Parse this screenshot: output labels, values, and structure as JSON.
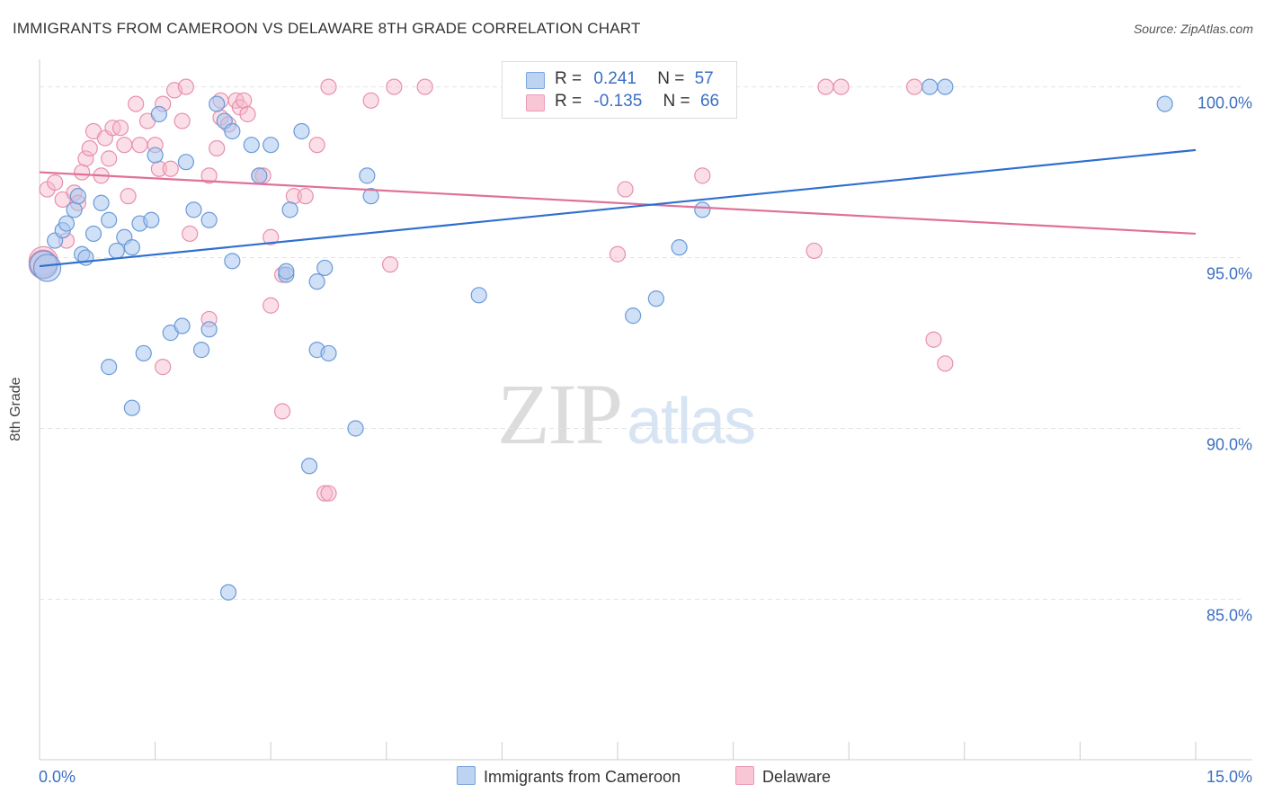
{
  "title": "IMMIGRANTS FROM CAMEROON VS DELAWARE 8TH GRADE CORRELATION CHART",
  "source": "Source: ZipAtlas.com",
  "watermark": {
    "zip": "ZIP",
    "atlas": "atlas"
  },
  "legend": {
    "row1": {
      "r_label": "R =",
      "r_value": "0.241",
      "n_label": "N =",
      "n_value": "57"
    },
    "row2": {
      "r_label": "R =",
      "r_value": "-0.135",
      "n_label": "N =",
      "n_value": "66"
    }
  },
  "bottom_legend": {
    "series1": "Immigrants from Cameroon",
    "series2": "Delaware"
  },
  "colors": {
    "blue_fill": "#a9c7ee",
    "blue_stroke": "#6a9bd8",
    "blue_line": "#2f6fcf",
    "pink_fill": "#f7b8cb",
    "pink_stroke": "#e890ab",
    "pink_line": "#e07099",
    "tick_label": "#3b6fc4",
    "grid": "#e4e4e4"
  },
  "chart_data": {
    "type": "scatter",
    "title": "IMMIGRANTS FROM CAMEROON VS DELAWARE 8TH GRADE CORRELATION CHART",
    "xlabel": "",
    "ylabel": "8th Grade",
    "xlim": [
      0,
      15
    ],
    "ylim": [
      80.3,
      100.7
    ],
    "x_tick_labels": [
      {
        "value": 0,
        "label": "0.0%"
      },
      {
        "value": 15,
        "label": "15.0%"
      }
    ],
    "y_tick_labels": [
      {
        "value": 100,
        "label": "100.0%"
      },
      {
        "value": 95,
        "label": "95.0%"
      },
      {
        "value": 90,
        "label": "90.0%"
      },
      {
        "value": 85,
        "label": "85.0%"
      }
    ],
    "x_minor_ticks": [
      1.5,
      3,
      4.5,
      6,
      7.5,
      9,
      10.5,
      12,
      13.5,
      15
    ],
    "grid": true,
    "legend_position": "top-center",
    "series": [
      {
        "name": "Immigrants from Cameroon",
        "color": "#a9c7ee",
        "r": 0.241,
        "n": 57,
        "trend": {
          "x": [
            0,
            15
          ],
          "y": [
            94.75,
            98.15
          ]
        },
        "points": [
          [
            0.05,
            94.8
          ],
          [
            0.1,
            94.7
          ],
          [
            0.2,
            95.5
          ],
          [
            0.3,
            95.8
          ],
          [
            0.35,
            96.0
          ],
          [
            0.45,
            96.4
          ],
          [
            0.5,
            96.8
          ],
          [
            0.55,
            95.1
          ],
          [
            0.6,
            95.0
          ],
          [
            0.7,
            95.7
          ],
          [
            0.8,
            96.6
          ],
          [
            0.9,
            96.1
          ],
          [
            1.0,
            95.2
          ],
          [
            1.1,
            95.6
          ],
          [
            1.2,
            95.3
          ],
          [
            1.3,
            96.0
          ],
          [
            1.45,
            96.1
          ],
          [
            1.5,
            98.0
          ],
          [
            1.55,
            99.2
          ],
          [
            1.9,
            97.8
          ],
          [
            2.0,
            96.4
          ],
          [
            2.2,
            96.1
          ],
          [
            2.3,
            99.5
          ],
          [
            2.4,
            99.0
          ],
          [
            2.5,
            98.7
          ],
          [
            2.5,
            94.9
          ],
          [
            2.75,
            98.3
          ],
          [
            2.85,
            97.4
          ],
          [
            3.0,
            98.3
          ],
          [
            3.2,
            94.5
          ],
          [
            3.25,
            96.4
          ],
          [
            3.4,
            98.7
          ],
          [
            3.6,
            94.3
          ],
          [
            3.7,
            94.7
          ],
          [
            4.25,
            97.4
          ],
          [
            4.3,
            96.8
          ],
          [
            0.9,
            91.8
          ],
          [
            1.2,
            90.6
          ],
          [
            1.35,
            92.2
          ],
          [
            1.7,
            92.8
          ],
          [
            1.85,
            93.0
          ],
          [
            2.1,
            92.3
          ],
          [
            2.2,
            92.9
          ],
          [
            3.6,
            92.3
          ],
          [
            3.75,
            92.2
          ],
          [
            3.5,
            88.9
          ],
          [
            4.1,
            90.0
          ],
          [
            2.45,
            85.2
          ],
          [
            5.7,
            93.9
          ],
          [
            7.7,
            93.3
          ],
          [
            8.0,
            93.8
          ],
          [
            8.3,
            95.3
          ],
          [
            8.6,
            96.4
          ],
          [
            11.55,
            100.0
          ],
          [
            11.75,
            100.0
          ],
          [
            14.6,
            99.5
          ],
          [
            3.2,
            94.6
          ]
        ]
      },
      {
        "name": "Delaware",
        "color": "#f7b8cb",
        "r": -0.135,
        "n": 66,
        "trend": {
          "x": [
            0,
            15
          ],
          "y": [
            97.5,
            95.7
          ]
        },
        "points": [
          [
            0.05,
            94.9
          ],
          [
            0.1,
            97.0
          ],
          [
            0.2,
            97.2
          ],
          [
            0.3,
            96.7
          ],
          [
            0.35,
            95.5
          ],
          [
            0.45,
            96.9
          ],
          [
            0.5,
            96.6
          ],
          [
            0.55,
            97.5
          ],
          [
            0.6,
            97.9
          ],
          [
            0.65,
            98.2
          ],
          [
            0.7,
            98.7
          ],
          [
            0.8,
            97.4
          ],
          [
            0.85,
            98.5
          ],
          [
            0.9,
            97.9
          ],
          [
            0.95,
            98.8
          ],
          [
            1.05,
            98.8
          ],
          [
            1.1,
            98.3
          ],
          [
            1.15,
            96.8
          ],
          [
            1.25,
            99.5
          ],
          [
            1.3,
            98.3
          ],
          [
            1.4,
            99.0
          ],
          [
            1.5,
            98.3
          ],
          [
            1.55,
            97.6
          ],
          [
            1.6,
            99.5
          ],
          [
            1.7,
            97.6
          ],
          [
            1.75,
            99.9
          ],
          [
            1.85,
            99.0
          ],
          [
            1.9,
            100.0
          ],
          [
            1.95,
            95.7
          ],
          [
            2.2,
            97.4
          ],
          [
            2.3,
            98.2
          ],
          [
            2.35,
            99.1
          ],
          [
            2.45,
            98.9
          ],
          [
            2.55,
            99.6
          ],
          [
            2.6,
            99.4
          ],
          [
            2.65,
            99.6
          ],
          [
            2.7,
            99.2
          ],
          [
            2.85,
            97.4
          ],
          [
            2.9,
            97.4
          ],
          [
            3.0,
            95.6
          ],
          [
            3.15,
            94.5
          ],
          [
            3.3,
            96.8
          ],
          [
            3.45,
            96.8
          ],
          [
            3.6,
            98.3
          ],
          [
            3.75,
            100.0
          ],
          [
            4.3,
            99.6
          ],
          [
            4.6,
            100.0
          ],
          [
            5.0,
            100.0
          ],
          [
            1.6,
            91.8
          ],
          [
            2.2,
            93.2
          ],
          [
            3.0,
            93.6
          ],
          [
            3.15,
            90.5
          ],
          [
            3.7,
            88.1
          ],
          [
            3.75,
            88.1
          ],
          [
            4.55,
            94.8
          ],
          [
            7.5,
            95.1
          ],
          [
            7.6,
            97.0
          ],
          [
            8.6,
            97.4
          ],
          [
            10.05,
            95.2
          ],
          [
            10.2,
            100.0
          ],
          [
            10.4,
            100.0
          ],
          [
            11.35,
            100.0
          ],
          [
            11.6,
            92.6
          ],
          [
            11.75,
            91.9
          ],
          [
            0.05,
            94.8
          ],
          [
            2.35,
            99.6
          ]
        ]
      }
    ]
  }
}
